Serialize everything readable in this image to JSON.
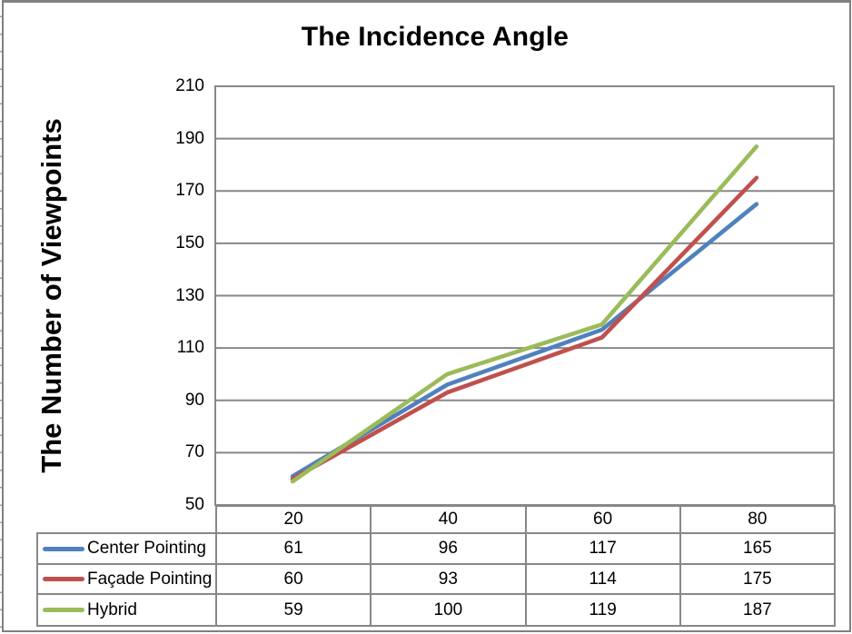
{
  "chart": {
    "title": "The Incidence Angle",
    "y_axis_title": "The Number of Viewpoints"
  },
  "chart_data": {
    "type": "line",
    "title": "The Incidence Angle",
    "xlabel": "",
    "ylabel": "The Number of Viewpoints",
    "categories": [
      "20",
      "40",
      "60",
      "80"
    ],
    "series": [
      {
        "name": "Center Pointing",
        "color": "#4F81BD",
        "values": [
          61,
          96,
          117,
          165
        ]
      },
      {
        "name": "Façade Pointing",
        "color": "#C0504D",
        "values": [
          60,
          93,
          114,
          175
        ]
      },
      {
        "name": "Hybrid",
        "color": "#9BBB59",
        "values": [
          59,
          100,
          119,
          187
        ]
      }
    ],
    "ylim": [
      50,
      210
    ],
    "yticks": [
      210,
      190,
      170,
      150,
      130,
      110,
      90,
      70,
      50
    ],
    "grid": true,
    "legend_position": "data-table-left-column",
    "colors": {
      "gridline": "#878787",
      "table_border": "#878787",
      "frame_border": "#808080",
      "text": "#000000",
      "background": "#FFFFFF"
    }
  }
}
